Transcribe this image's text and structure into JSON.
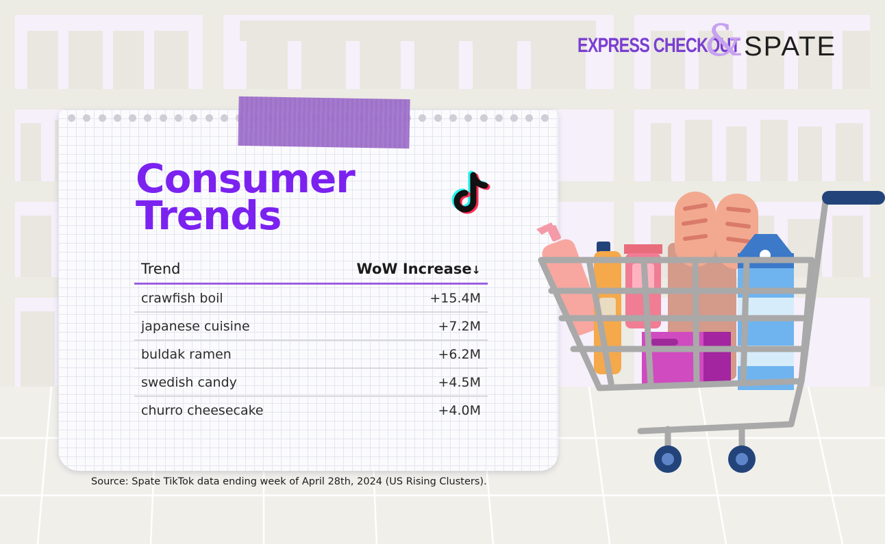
{
  "brand": {
    "express": "EXPRESS CHECKOUT",
    "ampersand": "&",
    "spate": "SPATE"
  },
  "title": {
    "line1": "Consumer",
    "line2": "Trends"
  },
  "table": {
    "headers": {
      "trend": "Trend",
      "increase": "WoW Increase",
      "sort_arrow": "↓"
    },
    "rows": [
      {
        "trend": "crawfish boil",
        "increase": "+15.4M"
      },
      {
        "trend": "japanese cuisine",
        "increase": "+7.2M"
      },
      {
        "trend": "buldak ramen",
        "increase": "+6.2M"
      },
      {
        "trend": "swedish candy",
        "increase": "+4.5M"
      },
      {
        "trend": "churro cheesecake",
        "increase": "+4.0M"
      }
    ]
  },
  "source": "Source: Spate TikTok data ending week of April 28th, 2024 (US Rising Clusters).",
  "icons": [
    "tiktok-logo-icon",
    "shopping-cart-icon"
  ],
  "colors": {
    "accent_purple": "#7b22f0",
    "header_rule": "#9b5fe0",
    "tape": "#9b6cc9",
    "cart_frame": "#a8a8a8",
    "cart_handle": "#22447a"
  }
}
